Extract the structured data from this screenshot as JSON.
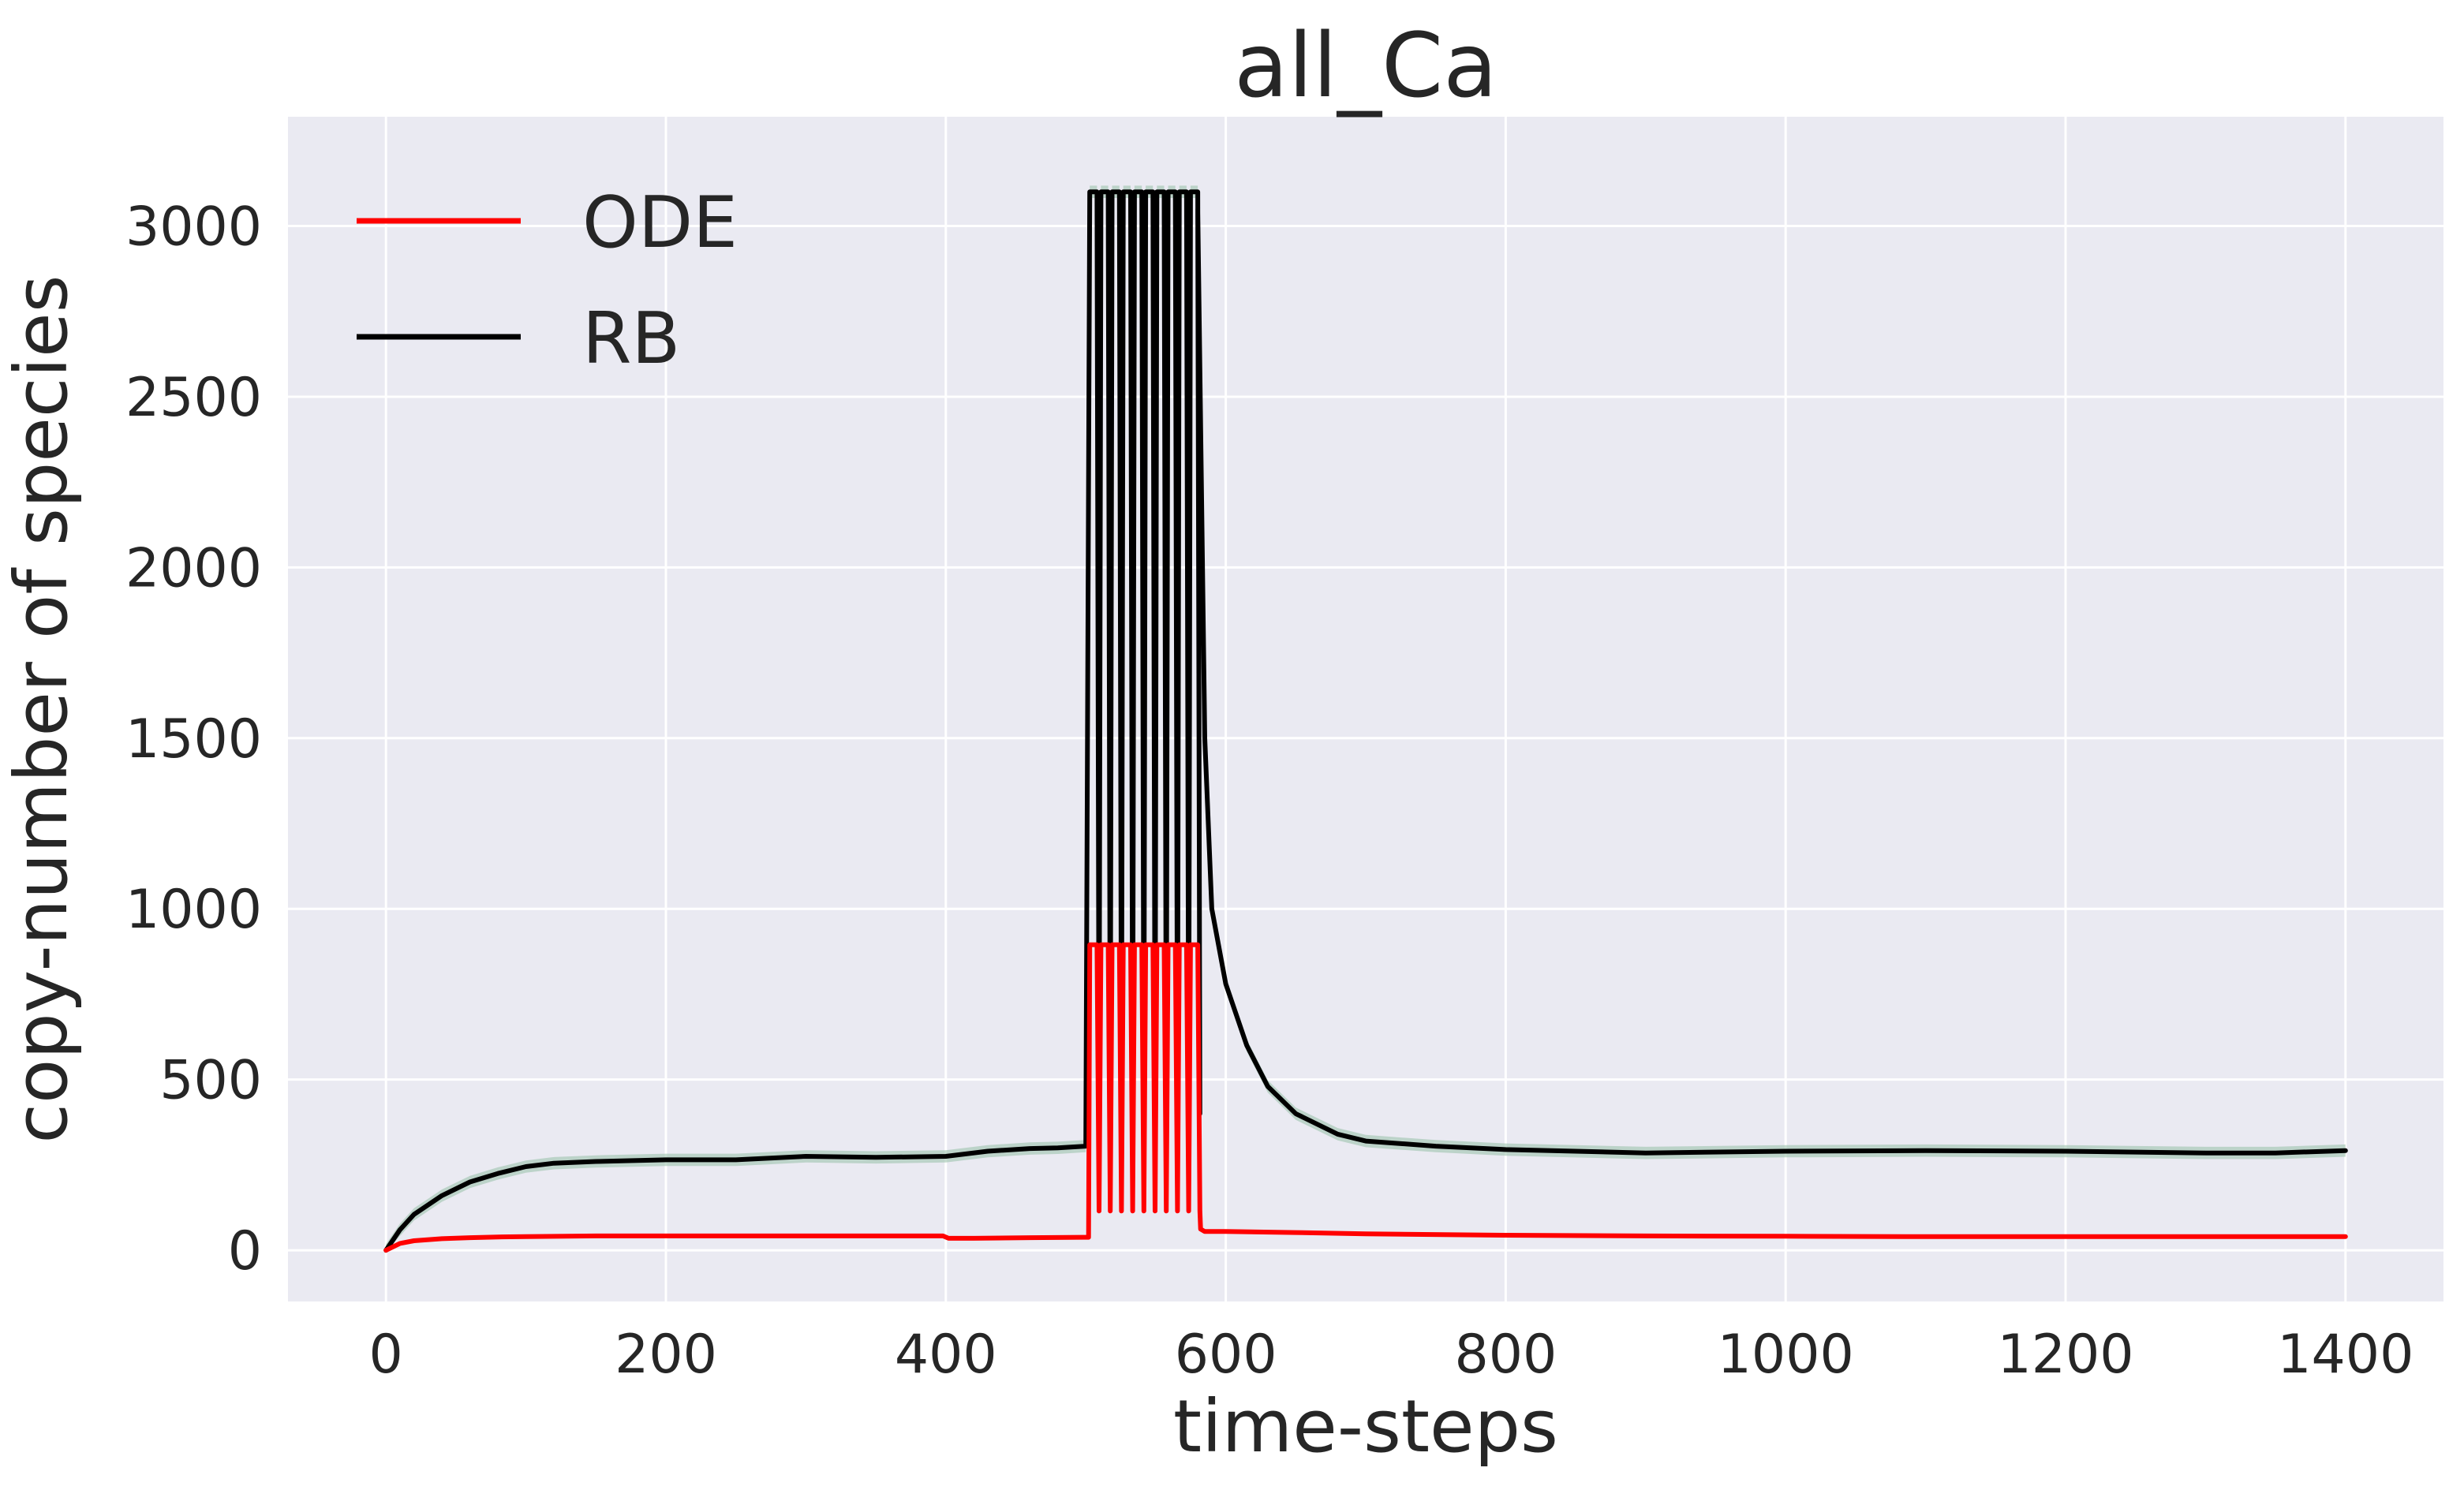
{
  "chart_data": {
    "type": "line",
    "title": "all_Ca",
    "xlabel": "time-steps",
    "ylabel": "copy-number of species",
    "xlim": [
      -70,
      1470
    ],
    "ylim": [
      -150,
      3320
    ],
    "xticks": [
      0,
      200,
      400,
      600,
      800,
      1000,
      1200,
      1400
    ],
    "yticks": [
      0,
      500,
      1000,
      1500,
      2000,
      2500,
      3000
    ],
    "xtick_labels": [
      "0",
      "200",
      "400",
      "600",
      "800",
      "1000",
      "1200",
      "1400"
    ],
    "ytick_labels": [
      "0",
      "500",
      "1000",
      "1500",
      "2000",
      "2500",
      "3000"
    ],
    "grid": true,
    "background": "#eaeaf2",
    "legend_position": "top-left",
    "series": [
      {
        "name": "ODE",
        "color": "#ff0000",
        "x": [
          0,
          10,
          20,
          40,
          60,
          80,
          100,
          150,
          200,
          300,
          398,
          402,
          420,
          460,
          498,
          502
        ],
        "y": [
          0,
          20,
          28,
          34,
          37,
          39,
          40,
          42,
          42,
          42,
          42,
          35,
          35,
          37,
          38,
          38
        ],
        "pulses": {
          "start": 502,
          "period": 8,
          "count": 10,
          "peak": 895,
          "trough": 115
        },
        "tail": {
          "x": [
            582,
            585,
            600,
            650,
            700,
            800,
            900,
            1000,
            1100,
            1200,
            1300,
            1400
          ],
          "y": [
            62,
            55,
            55,
            52,
            48,
            44,
            42,
            41,
            40,
            40,
            40,
            40
          ]
        }
      },
      {
        "name": "RB",
        "color": "#000000",
        "band_color": "#9cc3ad",
        "x": [
          0,
          10,
          20,
          40,
          60,
          80,
          100,
          120,
          150,
          200,
          250,
          300,
          350,
          400,
          430,
          460,
          480,
          500
        ],
        "y": [
          0,
          60,
          105,
          160,
          200,
          225,
          245,
          255,
          260,
          265,
          265,
          275,
          272,
          275,
          290,
          298,
          300,
          305
        ],
        "pulses": {
          "start": 502,
          "period": 8,
          "count": 10,
          "peak": 3100,
          "trough": 400
        },
        "tail": {
          "x": [
            580,
            585,
            590,
            600,
            615,
            630,
            650,
            680,
            700,
            750,
            800,
            900,
            1000,
            1100,
            1200,
            1300,
            1350,
            1400
          ],
          "y": [
            3050,
            1500,
            1000,
            780,
            600,
            480,
            400,
            340,
            320,
            305,
            295,
            285,
            290,
            292,
            290,
            285,
            285,
            292
          ]
        }
      }
    ]
  }
}
